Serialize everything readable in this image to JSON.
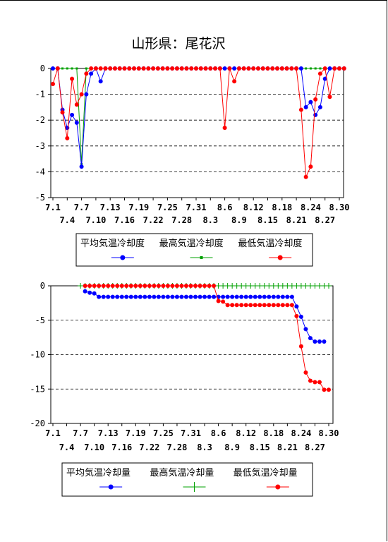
{
  "page": {
    "title": "山形県：尾花沢"
  },
  "colors": {
    "avg": "#0000ff",
    "max": "#00a000",
    "min": "#ff0000"
  },
  "chart_data": [
    {
      "type": "line",
      "title": "山形県：尾花沢",
      "ylim": [
        -5,
        0
      ],
      "yticks": [
        0,
        -1,
        -2,
        -3,
        -4,
        -5
      ],
      "x_tick_row1": [
        "7.1",
        "7.7",
        "7.13",
        "7.19",
        "7.25",
        "7.31",
        "8.6",
        "8.12",
        "8.18",
        "8.24",
        "8.30"
      ],
      "x_tick_row2": [
        "7.4",
        "7.10",
        "7.16",
        "7.22",
        "7.28",
        "8.3",
        "8.9",
        "8.15",
        "8.21",
        "8.27"
      ],
      "x_start": "7.1",
      "x_end": "8.31",
      "grid": "horizontal dashed",
      "legend": "bottom",
      "series": [
        {
          "name": "平均気温冷却度",
          "values": [
            0,
            0,
            -1.6,
            -2.3,
            -1.8,
            -2.1,
            -3.8,
            -1.0,
            -0.2,
            0,
            -0.5,
            0,
            0,
            0,
            0,
            0,
            0,
            0,
            0,
            0,
            0,
            0,
            0,
            0,
            0,
            0,
            0,
            0,
            0,
            0,
            0,
            0,
            0,
            0,
            0,
            0,
            0,
            0,
            0,
            0,
            0,
            0,
            0,
            0,
            0,
            0,
            0,
            0,
            0,
            0,
            0,
            0,
            0,
            -1.5,
            -1.3,
            -1.8,
            -1.5,
            -0.4,
            0,
            0,
            0,
            0
          ]
        },
        {
          "name": "最高気温冷却度",
          "values": [
            0,
            0,
            0,
            0,
            0,
            0,
            -3.7,
            0,
            0,
            0,
            0,
            0,
            0,
            0,
            0,
            0,
            0,
            0,
            0,
            0,
            0,
            0,
            0,
            0,
            0,
            0,
            0,
            0,
            0,
            0,
            0,
            0,
            0,
            0,
            0,
            0,
            0,
            0,
            0,
            0,
            0,
            0,
            0,
            0,
            0,
            0,
            0,
            0,
            0,
            0,
            0,
            0,
            0,
            0,
            0,
            0,
            0,
            0,
            0,
            0,
            0,
            0
          ]
        },
        {
          "name": "最低気温冷却度",
          "values": [
            -0.6,
            0,
            -1.7,
            -2.7,
            -0.4,
            -1.4,
            -1.0,
            -0.2,
            0,
            0,
            0,
            0,
            0,
            0,
            0,
            0,
            0,
            0,
            0,
            0,
            0,
            0,
            0,
            0,
            0,
            0,
            0,
            0,
            0,
            0,
            0,
            0,
            0,
            0,
            0,
            0,
            -2.3,
            0,
            -0.5,
            0,
            0,
            0,
            0,
            0,
            0,
            0,
            0,
            0,
            0,
            0,
            0,
            0,
            -1.6,
            -4.2,
            -3.8,
            -1.2,
            -0.2,
            0,
            -1.1,
            0,
            0,
            0
          ]
        }
      ]
    },
    {
      "type": "line",
      "ylim": [
        -20,
        0
      ],
      "yticks": [
        0,
        -5,
        -10,
        -15,
        -20
      ],
      "x_tick_row1": [
        "7.1",
        "7.7",
        "7.13",
        "7.19",
        "7.25",
        "7.31",
        "8.6",
        "8.12",
        "8.18",
        "8.24",
        "8.30"
      ],
      "x_tick_row2": [
        "7.4",
        "7.10",
        "7.16",
        "7.22",
        "7.28",
        "8.3",
        "8.9",
        "8.15",
        "8.21",
        "8.27"
      ],
      "x_start": "7.1",
      "x_end": "8.31",
      "grid": "horizontal dashed",
      "legend": "bottom",
      "series": [
        {
          "name": "平均気温冷却量",
          "values": [
            null,
            null,
            null,
            null,
            null,
            null,
            null,
            -0.8,
            -1.0,
            -1.1,
            -1.6,
            -1.6,
            -1.6,
            -1.6,
            -1.6,
            -1.6,
            -1.6,
            -1.6,
            -1.6,
            -1.6,
            -1.6,
            -1.6,
            -1.6,
            -1.6,
            -1.6,
            -1.6,
            -1.6,
            -1.6,
            -1.6,
            -1.6,
            -1.6,
            -1.6,
            -1.6,
            -1.6,
            -1.6,
            -1.6,
            -1.6,
            -1.6,
            -1.6,
            -1.6,
            -1.6,
            -1.6,
            -1.6,
            -1.6,
            -1.6,
            -1.6,
            -1.6,
            -1.6,
            -1.6,
            -1.6,
            -1.6,
            -1.6,
            -1.6,
            -3.0,
            -4.5,
            -6.3,
            -7.6,
            -8.1,
            -8.1,
            -8.1,
            null,
            null
          ]
        },
        {
          "name": "最高気温冷却量",
          "values": [
            null,
            null,
            null,
            null,
            null,
            null,
            0,
            0,
            0,
            0,
            0,
            0,
            0,
            0,
            0,
            0,
            0,
            0,
            0,
            0,
            0,
            0,
            0,
            0,
            0,
            0,
            0,
            0,
            0,
            0,
            0,
            0,
            0,
            0,
            0,
            0,
            0,
            0,
            0,
            0,
            0,
            0,
            0,
            0,
            0,
            0,
            0,
            0,
            0,
            0,
            0,
            0,
            0,
            0,
            0,
            0,
            0,
            0,
            0,
            0,
            0,
            null
          ]
        },
        {
          "name": "最低気温冷却量",
          "values": [
            null,
            null,
            null,
            null,
            null,
            null,
            null,
            0,
            0,
            0,
            0,
            0,
            0,
            0,
            0,
            0,
            0,
            0,
            0,
            0,
            0,
            0,
            0,
            0,
            0,
            0,
            0,
            0,
            0,
            0,
            0,
            0,
            0,
            0,
            0,
            0,
            -2.2,
            -2.3,
            -2.8,
            -2.8,
            -2.8,
            -2.8,
            -2.8,
            -2.8,
            -2.8,
            -2.8,
            -2.8,
            -2.8,
            -2.8,
            -2.8,
            -2.8,
            -2.8,
            -2.8,
            -4.4,
            -8.8,
            -12.6,
            -13.8,
            -14.0,
            -14.0,
            -15.1,
            -15.1,
            null
          ]
        }
      ]
    }
  ]
}
